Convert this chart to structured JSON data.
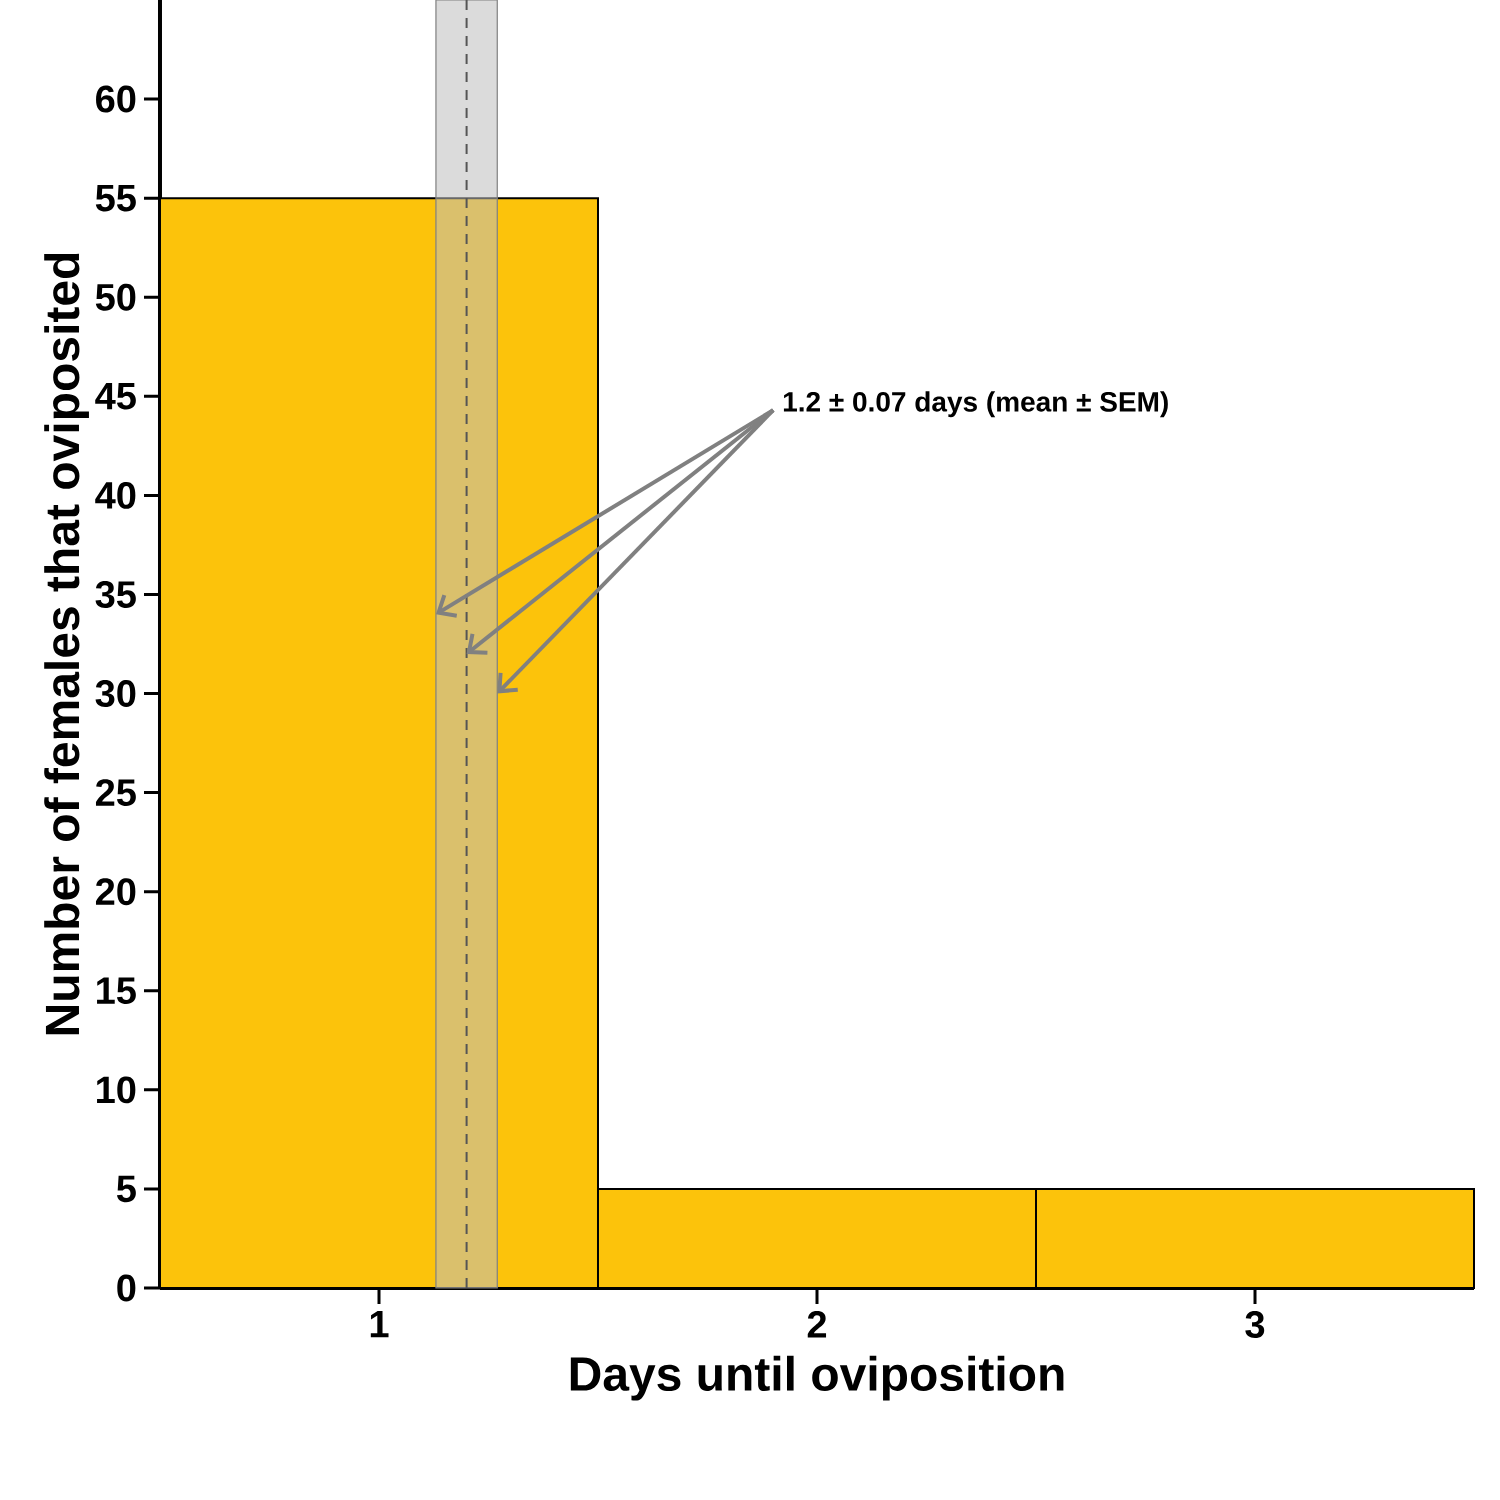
{
  "chart_data": {
    "type": "histogram",
    "bins": [
      0.5,
      1.5,
      2.5,
      3.5
    ],
    "values": [
      55,
      5,
      5
    ],
    "color": "#fcc30b",
    "xlim": [
      0.5,
      3.5
    ],
    "ylim": [
      0,
      65
    ],
    "xticks": [
      1,
      2,
      3
    ],
    "yticks": [
      0,
      5,
      10,
      15,
      20,
      25,
      30,
      35,
      40,
      45,
      50,
      55,
      60
    ],
    "xlabel": "Days until oviposition",
    "ylabel": "Number of females that oviposited",
    "annotations": [
      {
        "text": "1.2 ± 0.07 days (mean ± SEM)",
        "x": 1.2,
        "y": 32
      }
    ],
    "ref_lines": [
      {
        "axis": "x",
        "value": 1.2,
        "color": "#555555",
        "line_style": "dashed"
      }
    ],
    "bands": [
      {
        "axis": "x",
        "from": 1.13,
        "to": 1.27,
        "color": "#bdbdbd"
      }
    ]
  }
}
